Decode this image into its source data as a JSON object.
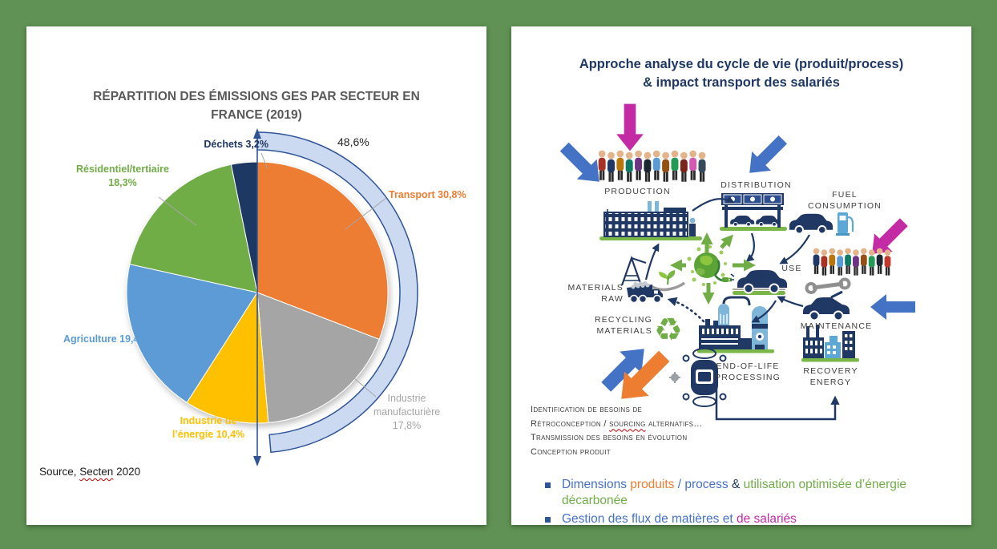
{
  "background_color": "#5f9254",
  "chart_data": {
    "type": "pie",
    "title": "RÉPARTITION DES ÉMISSIONS GES PAR SECTEUR EN\nFRANCE (2019)",
    "source": "Source, Secten 2020",
    "start_angle_deg": 0,
    "direction": "clockwise",
    "legend_position": "none",
    "slices": [
      {
        "label": "Transport",
        "value": 30.8,
        "color": "#ED7D31",
        "display": "Transport 30,8%"
      },
      {
        "label": "Industrie manufacturière",
        "value": 17.8,
        "color": "#A5A5A5",
        "display": "Industrie\nmanufacturière\n17,8%"
      },
      {
        "label": "Industrie de l’énergie",
        "value": 10.4,
        "color": "#FFC000",
        "display": "Industrie de\nl’énergie 10,4%"
      },
      {
        "label": "Agriculture",
        "value": 19.4,
        "color": "#5B9BD5",
        "display": "Agriculture 19,4%"
      },
      {
        "label": "Résidentiel/tertiaire",
        "value": 18.3,
        "color": "#70AD47",
        "display": "Résidentiel/tertiaire\n18,3%"
      },
      {
        "label": "Déchets",
        "value": 3.2,
        "color": "#1F3864",
        "display": "Déchets 3,2%"
      }
    ],
    "highlight_arc": {
      "label": "48,6%",
      "value": 48.6,
      "covers": [
        "Transport",
        "Industrie manufacturière"
      ],
      "band_fill": "#CBD9F1",
      "band_stroke": "#2F5597"
    }
  },
  "left_panel": {
    "title": "RÉPARTITION DES ÉMISSIONS GES PAR SECTEUR EN\nFRANCE (2019)",
    "arc_label": "48,6%",
    "source_prefix": "Source, ",
    "source_wavy": "Secten",
    "source_suffix": " 2020"
  },
  "right_panel": {
    "title": "Approche analyse du cycle de vie (produit/process)\n& impact transport des salariés",
    "labels": {
      "production": "PRODUCTION",
      "distribution": "DISTRIBUTION",
      "fuel": "FUEL\nCONSUMPTION",
      "use": "USE",
      "maintenance": "MAINTENANCE",
      "recovery": "RECOVERY\nENERGY",
      "end_of_life": "END-OF-LIFE\nPROCESSING",
      "raw_materials": "MATERIALS\nRAW",
      "recycling": "RECYCLING\nMATERIALS"
    },
    "notes": {
      "line1": "Identification de besoins de",
      "line2_pre": "Rétroconception / ",
      "line2_wavy": "sourcing",
      "line2_post": " alternatifs…",
      "line3": "Transmission des besoins en évolution",
      "line4": "Conception produit"
    },
    "bullets": [
      {
        "spans": [
          {
            "text": "Dimensions ",
            "color": "#4472C4"
          },
          {
            "text": "produits",
            "color": "#ED7D31"
          },
          {
            "text": " / process ",
            "color": "#4472C4"
          },
          {
            "text": "& ",
            "color": "#1F3864"
          },
          {
            "text": "utilisation optimisée d’énergie décarbonée",
            "color": "#70AD47"
          }
        ]
      },
      {
        "spans": [
          {
            "text": "Gestion des flux de matières et ",
            "color": "#4472C4"
          },
          {
            "text": "de salariés",
            "color": "#C32BA5"
          }
        ]
      }
    ],
    "arrow_colors": {
      "emphasis_blue": "#4472C4",
      "emphasis_magenta": "#C32BA5",
      "emphasis_orange": "#ED7D31",
      "flow_navy": "#1F3864",
      "flow_green": "#70AD47"
    },
    "people_colors_a": [
      "#a93226",
      "#1f3864",
      "#b9770e",
      "#117a65",
      "#6c3483",
      "#1b2631",
      "#5b9bd5",
      "#935116",
      "#239b56",
      "#7b241c",
      "#d35ab3",
      "#34495e"
    ],
    "people_colors_b": [
      "#1f3864",
      "#a93226",
      "#b9770e",
      "#5b9bd5",
      "#117a65",
      "#6c3483",
      "#935116",
      "#239b56",
      "#1b2631",
      "#c0392b"
    ]
  }
}
